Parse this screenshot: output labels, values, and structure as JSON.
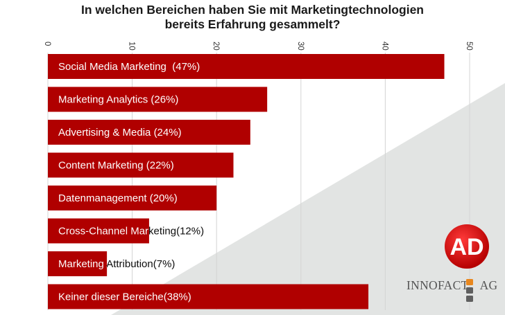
{
  "title_line1": "In welchen Bereichen haben Sie mit Marketingtechnologien",
  "title_line2": "bereits Erfahrung gesammelt?",
  "colors": {
    "bar": "#b00000",
    "background_shape": "#e2e4e3",
    "grid": "#d4d4d4",
    "logo_red": "#cc0a0a",
    "logo_orange": "#e8871e",
    "logo_gray": "#5f5f5f"
  },
  "chart_data": {
    "type": "bar",
    "orientation": "horizontal",
    "title": "In welchen Bereichen haben Sie mit Marketingtechnologien bereits Erfahrung gesammelt?",
    "categories": [
      "Social Media Marketing  (47%)",
      "Marketing Analytics (26%)",
      "Advertising & Media (24%)",
      "Content Marketing (22%)",
      "Datenmanagement (20%)",
      "Cross-Channel Marketing(12%)",
      "Marketing Attribution(7%)",
      "Keiner dieser Bereiche(38%)"
    ],
    "values": [
      47,
      26,
      24,
      22,
      20,
      12,
      7,
      38
    ],
    "xlim": [
      0,
      50
    ],
    "ticks": [
      "0",
      "10",
      "20",
      "30",
      "40",
      "50"
    ],
    "tick_position": "top",
    "tick_label_rotation": 90,
    "grid": true,
    "xlabel": "",
    "ylabel": ""
  },
  "logos": {
    "ad_mark": "AD",
    "company_name": "INNOFACT",
    "company_suffix": "AG"
  }
}
